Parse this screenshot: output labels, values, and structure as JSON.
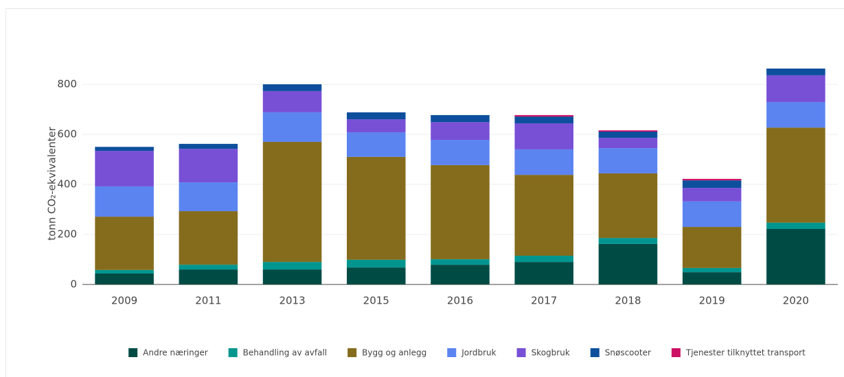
{
  "chart_data": {
    "type": "stacked_bar",
    "y_label": "tonn CO₂-ekvivalenter",
    "categories": [
      "2009",
      "2011",
      "2013",
      "2015",
      "2016",
      "2017",
      "2018",
      "2019",
      "2020"
    ],
    "series": [
      {
        "name": "Andre næringer",
        "color": "#004c45",
        "values": [
          44,
          60,
          60,
          68,
          79,
          90,
          162,
          49,
          222
        ]
      },
      {
        "name": "Behandling av avfall",
        "color": "#00968f",
        "values": [
          14,
          19,
          30,
          31,
          22,
          25,
          24,
          17,
          25
        ]
      },
      {
        "name": "Bygg og anlegg",
        "color": "#856c1d",
        "values": [
          213,
          214,
          480,
          411,
          376,
          323,
          258,
          164,
          380
        ]
      },
      {
        "name": "Jordbruk",
        "color": "#5b84f0",
        "values": [
          121,
          115,
          118,
          98,
          101,
          102,
          101,
          102,
          102
        ]
      },
      {
        "name": "Skogbruk",
        "color": "#7750d6",
        "values": [
          142,
          134,
          85,
          52,
          71,
          104,
          41,
          54,
          107
        ]
      },
      {
        "name": "Snøscooter",
        "color": "#0d4f9c",
        "values": [
          16,
          20,
          27,
          28,
          28,
          27,
          25,
          30,
          27
        ]
      },
      {
        "name": "Tjenester tilknyttet transport",
        "color": "#cc1066",
        "values": [
          0,
          0,
          0,
          0,
          0,
          6,
          5,
          6,
          0
        ]
      }
    ],
    "ylim": [
      0,
      900
    ],
    "yticks": [
      0,
      200,
      400,
      600,
      800
    ],
    "grid": true
  }
}
